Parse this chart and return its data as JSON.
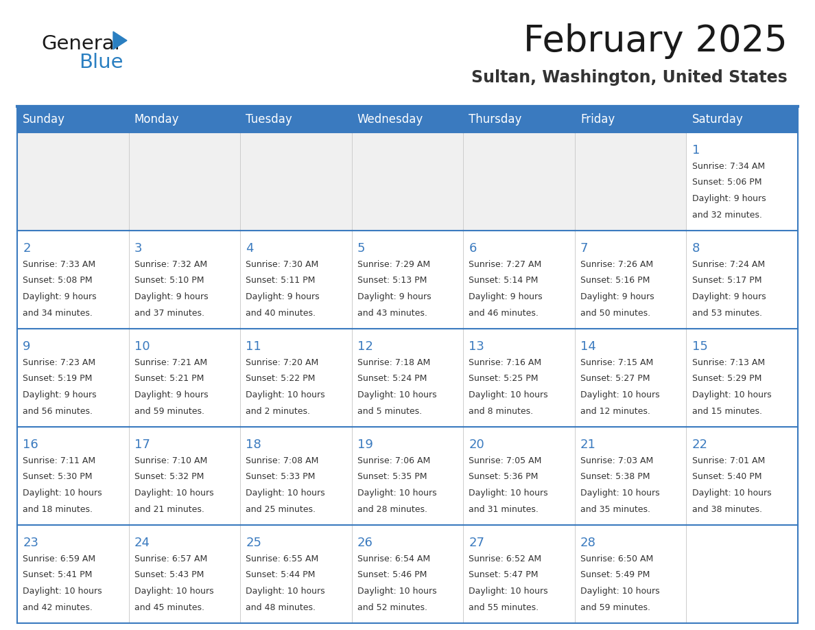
{
  "title": "February 2025",
  "subtitle": "Sultan, Washington, United States",
  "header_color": "#3a7abf",
  "header_text_color": "#ffffff",
  "cell_bg_color": "#ffffff",
  "row1_bg_color": "#f0f0f0",
  "border_color": "#3a7abf",
  "day_number_color": "#3a7abf",
  "text_color": "#333333",
  "days_of_week": [
    "Sunday",
    "Monday",
    "Tuesday",
    "Wednesday",
    "Thursday",
    "Friday",
    "Saturday"
  ],
  "weeks": [
    [
      {
        "day": null,
        "info": ""
      },
      {
        "day": null,
        "info": ""
      },
      {
        "day": null,
        "info": ""
      },
      {
        "day": null,
        "info": ""
      },
      {
        "day": null,
        "info": ""
      },
      {
        "day": null,
        "info": ""
      },
      {
        "day": 1,
        "info": "Sunrise: 7:34 AM\nSunset: 5:06 PM\nDaylight: 9 hours\nand 32 minutes."
      }
    ],
    [
      {
        "day": 2,
        "info": "Sunrise: 7:33 AM\nSunset: 5:08 PM\nDaylight: 9 hours\nand 34 minutes."
      },
      {
        "day": 3,
        "info": "Sunrise: 7:32 AM\nSunset: 5:10 PM\nDaylight: 9 hours\nand 37 minutes."
      },
      {
        "day": 4,
        "info": "Sunrise: 7:30 AM\nSunset: 5:11 PM\nDaylight: 9 hours\nand 40 minutes."
      },
      {
        "day": 5,
        "info": "Sunrise: 7:29 AM\nSunset: 5:13 PM\nDaylight: 9 hours\nand 43 minutes."
      },
      {
        "day": 6,
        "info": "Sunrise: 7:27 AM\nSunset: 5:14 PM\nDaylight: 9 hours\nand 46 minutes."
      },
      {
        "day": 7,
        "info": "Sunrise: 7:26 AM\nSunset: 5:16 PM\nDaylight: 9 hours\nand 50 minutes."
      },
      {
        "day": 8,
        "info": "Sunrise: 7:24 AM\nSunset: 5:17 PM\nDaylight: 9 hours\nand 53 minutes."
      }
    ],
    [
      {
        "day": 9,
        "info": "Sunrise: 7:23 AM\nSunset: 5:19 PM\nDaylight: 9 hours\nand 56 minutes."
      },
      {
        "day": 10,
        "info": "Sunrise: 7:21 AM\nSunset: 5:21 PM\nDaylight: 9 hours\nand 59 minutes."
      },
      {
        "day": 11,
        "info": "Sunrise: 7:20 AM\nSunset: 5:22 PM\nDaylight: 10 hours\nand 2 minutes."
      },
      {
        "day": 12,
        "info": "Sunrise: 7:18 AM\nSunset: 5:24 PM\nDaylight: 10 hours\nand 5 minutes."
      },
      {
        "day": 13,
        "info": "Sunrise: 7:16 AM\nSunset: 5:25 PM\nDaylight: 10 hours\nand 8 minutes."
      },
      {
        "day": 14,
        "info": "Sunrise: 7:15 AM\nSunset: 5:27 PM\nDaylight: 10 hours\nand 12 minutes."
      },
      {
        "day": 15,
        "info": "Sunrise: 7:13 AM\nSunset: 5:29 PM\nDaylight: 10 hours\nand 15 minutes."
      }
    ],
    [
      {
        "day": 16,
        "info": "Sunrise: 7:11 AM\nSunset: 5:30 PM\nDaylight: 10 hours\nand 18 minutes."
      },
      {
        "day": 17,
        "info": "Sunrise: 7:10 AM\nSunset: 5:32 PM\nDaylight: 10 hours\nand 21 minutes."
      },
      {
        "day": 18,
        "info": "Sunrise: 7:08 AM\nSunset: 5:33 PM\nDaylight: 10 hours\nand 25 minutes."
      },
      {
        "day": 19,
        "info": "Sunrise: 7:06 AM\nSunset: 5:35 PM\nDaylight: 10 hours\nand 28 minutes."
      },
      {
        "day": 20,
        "info": "Sunrise: 7:05 AM\nSunset: 5:36 PM\nDaylight: 10 hours\nand 31 minutes."
      },
      {
        "day": 21,
        "info": "Sunrise: 7:03 AM\nSunset: 5:38 PM\nDaylight: 10 hours\nand 35 minutes."
      },
      {
        "day": 22,
        "info": "Sunrise: 7:01 AM\nSunset: 5:40 PM\nDaylight: 10 hours\nand 38 minutes."
      }
    ],
    [
      {
        "day": 23,
        "info": "Sunrise: 6:59 AM\nSunset: 5:41 PM\nDaylight: 10 hours\nand 42 minutes."
      },
      {
        "day": 24,
        "info": "Sunrise: 6:57 AM\nSunset: 5:43 PM\nDaylight: 10 hours\nand 45 minutes."
      },
      {
        "day": 25,
        "info": "Sunrise: 6:55 AM\nSunset: 5:44 PM\nDaylight: 10 hours\nand 48 minutes."
      },
      {
        "day": 26,
        "info": "Sunrise: 6:54 AM\nSunset: 5:46 PM\nDaylight: 10 hours\nand 52 minutes."
      },
      {
        "day": 27,
        "info": "Sunrise: 6:52 AM\nSunset: 5:47 PM\nDaylight: 10 hours\nand 55 minutes."
      },
      {
        "day": 28,
        "info": "Sunrise: 6:50 AM\nSunset: 5:49 PM\nDaylight: 10 hours\nand 59 minutes."
      },
      {
        "day": null,
        "info": ""
      }
    ]
  ],
  "logo_text_general": "General",
  "logo_text_blue": "Blue",
  "logo_color_general": "#1a1a1a",
  "logo_color_blue": "#2a7fc1",
  "logo_triangle_color": "#2a7fc1",
  "title_fontsize": 38,
  "subtitle_fontsize": 17,
  "header_fontsize": 12,
  "day_num_fontsize": 13,
  "cell_text_fontsize": 9
}
